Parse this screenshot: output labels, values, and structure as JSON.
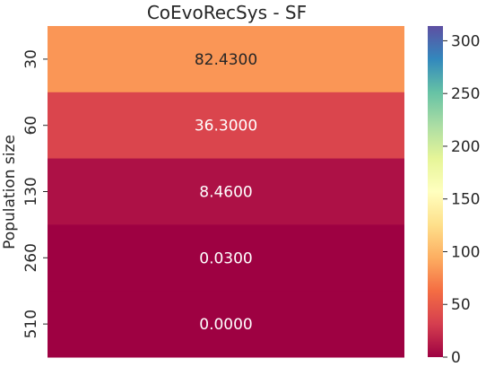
{
  "chart_data": {
    "type": "heatmap",
    "title": "CoEvoRecSys - SF",
    "ylabel": "Population size",
    "xlabel": "",
    "rows": [
      "30",
      "60",
      "130",
      "260",
      "510"
    ],
    "values": [
      82.43,
      36.3,
      8.46,
      0.03,
      0.0
    ],
    "value_labels": [
      "82.4300",
      "36.3000",
      "8.4600",
      "0.0300",
      "0.0000"
    ],
    "colormap": "Spectral",
    "colorbar": {
      "range": [
        0,
        314
      ],
      "ticks": [
        0,
        50,
        100,
        150,
        200,
        250,
        300
      ]
    }
  }
}
